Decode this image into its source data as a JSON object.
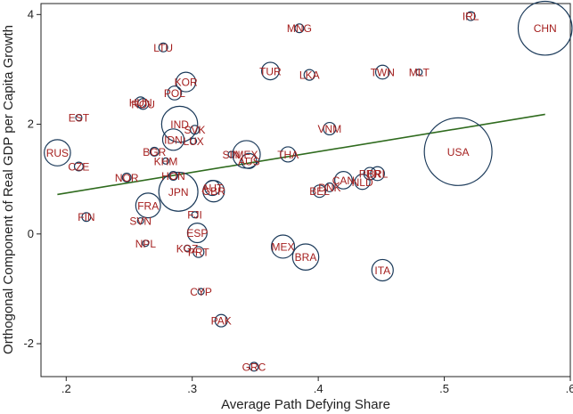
{
  "chart_data": {
    "type": "scatter",
    "xlabel": "Average Path Defying Share",
    "ylabel": "Orthogonal Component of Real GDP per Capita Growth",
    "xlim": [
      0.18,
      0.6
    ],
    "ylim": [
      -2.6,
      4.2
    ],
    "xticks": [
      {
        "value": 0.2,
        "label": ".2"
      },
      {
        "value": 0.3,
        "label": ".3"
      },
      {
        "value": 0.4,
        "label": ".4"
      },
      {
        "value": 0.5,
        "label": ".5"
      },
      {
        "value": 0.6,
        "label": ".6"
      }
    ],
    "yticks": [
      {
        "value": -2,
        "label": "-2"
      },
      {
        "value": 0,
        "label": "0"
      },
      {
        "value": 2,
        "label": "2"
      },
      {
        "value": 4,
        "label": "4"
      }
    ],
    "colors": {
      "bubble": "#1b3a5a",
      "label": "#a5201f",
      "fit": "#2f6b1e"
    },
    "fit_line": {
      "x": [
        0.193,
        0.58
      ],
      "y": [
        0.72,
        2.18
      ]
    },
    "points": [
      {
        "label": "CHN",
        "x": 0.58,
        "y": 3.75,
        "size": 3.8
      },
      {
        "label": "IRL",
        "x": 0.521,
        "y": 3.97,
        "size": 0.1
      },
      {
        "label": "MNG",
        "x": 0.385,
        "y": 3.75,
        "size": 0.1
      },
      {
        "label": "LTU",
        "x": 0.277,
        "y": 3.4,
        "size": 0.1
      },
      {
        "label": "TUR",
        "x": 0.362,
        "y": 2.97,
        "size": 0.4
      },
      {
        "label": "LKA",
        "x": 0.393,
        "y": 2.9,
        "size": 0.15
      },
      {
        "label": "TWN",
        "x": 0.451,
        "y": 2.95,
        "size": 0.25
      },
      {
        "label": "MLT",
        "x": 0.48,
        "y": 2.95,
        "size": 0.05
      },
      {
        "label": "KOR",
        "x": 0.295,
        "y": 2.77,
        "size": 0.5
      },
      {
        "label": "POL",
        "x": 0.286,
        "y": 2.57,
        "size": 0.25
      },
      {
        "label": "HUN",
        "x": 0.259,
        "y": 2.4,
        "size": 0.15
      },
      {
        "label": "ROU",
        "x": 0.261,
        "y": 2.37,
        "size": 0.15
      },
      {
        "label": "EST",
        "x": 0.21,
        "y": 2.12,
        "size": 0.05
      },
      {
        "label": "IND",
        "x": 0.29,
        "y": 2.0,
        "size": 1.7
      },
      {
        "label": "SVK",
        "x": 0.302,
        "y": 1.9,
        "size": 0.1
      },
      {
        "label": "VNM",
        "x": 0.409,
        "y": 1.92,
        "size": 0.2
      },
      {
        "label": "IDN",
        "x": 0.285,
        "y": 1.72,
        "size": 0.6
      },
      {
        "label": "LUX",
        "x": 0.301,
        "y": 1.69,
        "size": 0.05
      },
      {
        "label": "RUS",
        "x": 0.193,
        "y": 1.48,
        "size": 0.9
      },
      {
        "label": "BGR",
        "x": 0.27,
        "y": 1.5,
        "size": 0.1
      },
      {
        "label": "SIN",
        "x": 0.331,
        "y": 1.45,
        "size": 0.05
      },
      {
        "label": "MEX",
        "x": 0.343,
        "y": 1.45,
        "size": 1.0
      },
      {
        "label": "AUS",
        "x": 0.345,
        "y": 1.33,
        "size": 0.3
      },
      {
        "label": "THA",
        "x": 0.376,
        "y": 1.45,
        "size": 0.3
      },
      {
        "label": "USA",
        "x": 0.511,
        "y": 1.5,
        "size": 6.0
      },
      {
        "label": "CZE",
        "x": 0.21,
        "y": 1.23,
        "size": 0.1
      },
      {
        "label": "KHM",
        "x": 0.279,
        "y": 1.33,
        "size": 0.05
      },
      {
        "label": "HON",
        "x": 0.285,
        "y": 1.06,
        "size": 0.1
      },
      {
        "label": "NOR",
        "x": 0.248,
        "y": 1.03,
        "size": 0.1
      },
      {
        "label": "PER",
        "x": 0.441,
        "y": 1.1,
        "size": 0.2
      },
      {
        "label": "BRL",
        "x": 0.447,
        "y": 1.1,
        "size": 0.25
      },
      {
        "label": "CAN",
        "x": 0.42,
        "y": 0.98,
        "size": 0.4
      },
      {
        "label": "NLD",
        "x": 0.435,
        "y": 0.95,
        "size": 0.3
      },
      {
        "label": "DNK",
        "x": 0.409,
        "y": 0.85,
        "size": 0.1
      },
      {
        "label": "BEL",
        "x": 0.401,
        "y": 0.78,
        "size": 0.2
      },
      {
        "label": "AUT",
        "x": 0.316,
        "y": 0.84,
        "size": 0.3
      },
      {
        "label": "GBR",
        "x": 0.317,
        "y": 0.78,
        "size": 0.6
      },
      {
        "label": "JPN",
        "x": 0.289,
        "y": 0.77,
        "size": 2.0
      },
      {
        "label": "FRA",
        "x": 0.265,
        "y": 0.52,
        "size": 0.8
      },
      {
        "label": "FIN",
        "x": 0.216,
        "y": 0.31,
        "size": 0.1
      },
      {
        "label": "FJI",
        "x": 0.302,
        "y": 0.35,
        "size": 0.05
      },
      {
        "label": "SVN",
        "x": 0.259,
        "y": 0.24,
        "size": 0.05
      },
      {
        "label": "ESP",
        "x": 0.304,
        "y": 0.02,
        "size": 0.5
      },
      {
        "label": "NPL",
        "x": 0.263,
        "y": -0.17,
        "size": 0.05
      },
      {
        "label": "KGZ",
        "x": 0.296,
        "y": -0.26,
        "size": 0.05
      },
      {
        "label": "PRT",
        "x": 0.305,
        "y": -0.33,
        "size": 0.15
      },
      {
        "label": "MEX",
        "x": 0.372,
        "y": -0.23,
        "size": 0.7
      },
      {
        "label": "BRA",
        "x": 0.39,
        "y": -0.42,
        "size": 0.9
      },
      {
        "label": "ITA",
        "x": 0.451,
        "y": -0.66,
        "size": 0.6
      },
      {
        "label": "CYP",
        "x": 0.307,
        "y": -1.05,
        "size": 0.05
      },
      {
        "label": "PAK",
        "x": 0.323,
        "y": -1.58,
        "size": 0.2
      },
      {
        "label": "GRC",
        "x": 0.349,
        "y": -2.42,
        "size": 0.1
      }
    ]
  }
}
